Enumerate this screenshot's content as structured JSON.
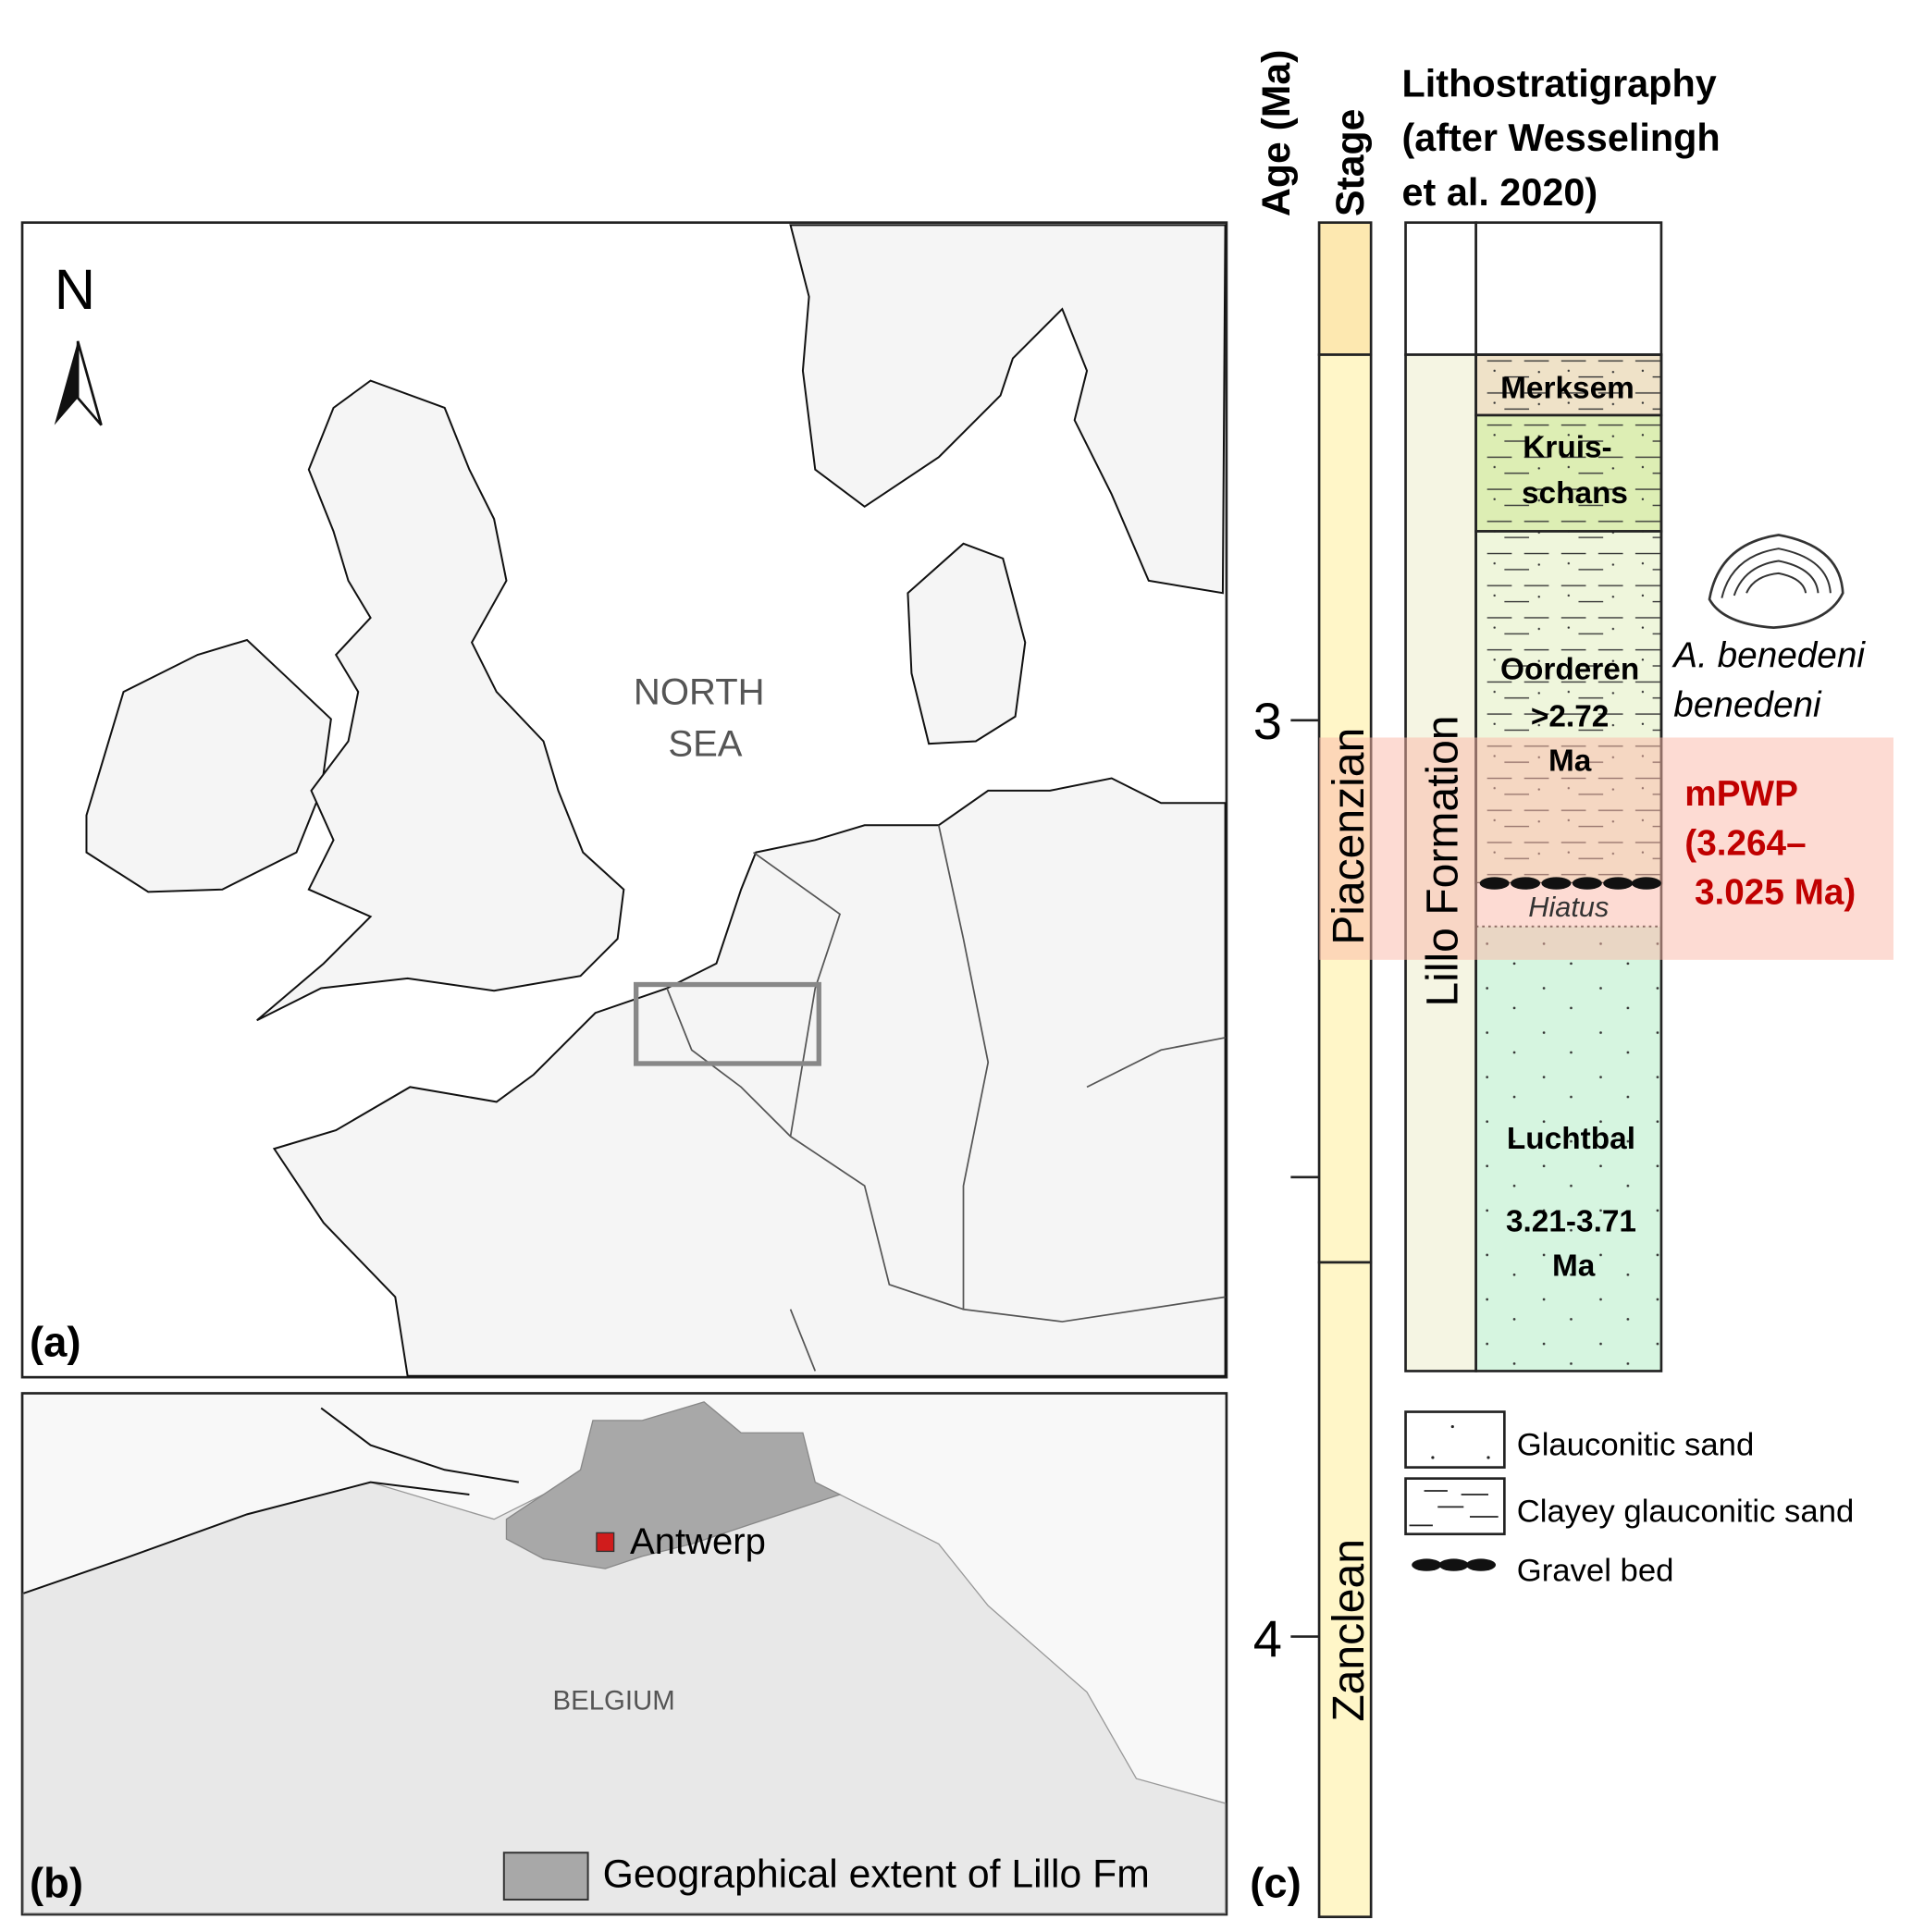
{
  "panel_a": {
    "label": "(a)",
    "north_label": "N",
    "sea_label_line1": "NORTH",
    "sea_label_line2": "SEA"
  },
  "panel_b": {
    "label": "(b)",
    "country_label": "BELGIUM",
    "city_label": "Antwerp",
    "legend_label": "Geographical extent of Lillo Fm",
    "colors": {
      "lillo_extent": "#a8a8a8",
      "city_marker": "#d01c1c"
    }
  },
  "panel_c": {
    "label": "(c)",
    "age_header": "Age (Ma)",
    "stage_header": "Stage",
    "litho_header_lines": [
      "Lithostratigraphy",
      "(after Wesselingh",
      "et al. 2020)"
    ],
    "age_ticks": [
      "3",
      "4"
    ],
    "stages": [
      {
        "name": "",
        "color": "#fde8b0"
      },
      {
        "name": "Piacenzian",
        "color": "#fff6c8"
      },
      {
        "name": "Zanclean",
        "color": "#fff6c8"
      }
    ],
    "formation": {
      "name": "Lillo Formation",
      "color": "#f5f5e3"
    },
    "members": [
      {
        "name_lines": [
          "Merksem"
        ],
        "color": "#efe2c8",
        "lithology": "clayey glauconitic sand"
      },
      {
        "name_lines": [
          "Kruis-",
          "schans"
        ],
        "color": "#ddeeb4",
        "lithology": "clayey glauconitic sand"
      },
      {
        "name_lines": [
          "Oorderen",
          ">2.72",
          "Ma"
        ],
        "color": "#eff6dc",
        "lithology": "clayey glauconitic sand"
      },
      {
        "name_lines": [
          "Hiatus"
        ]
      },
      {
        "name_lines": [
          "Luchtbal",
          "3.21-3.71",
          "Ma"
        ],
        "color": "#d6f5e0",
        "lithology": "glauconitic sand"
      }
    ],
    "species_lines": [
      "A. benedeni",
      "benedeni"
    ],
    "mpwp_lines": [
      "mPWP",
      "(3.264–",
      "3.025 Ma)"
    ],
    "mpwp_color": "#c00000",
    "mpwp_band_color": "#fbb8a8",
    "legend": [
      {
        "label": "Glauconitic sand",
        "symbol": "dotted-box"
      },
      {
        "label": "Clayey glauconitic sand",
        "symbol": "dashed-box"
      },
      {
        "label": "Gravel bed",
        "symbol": "gravel-dots"
      }
    ]
  }
}
